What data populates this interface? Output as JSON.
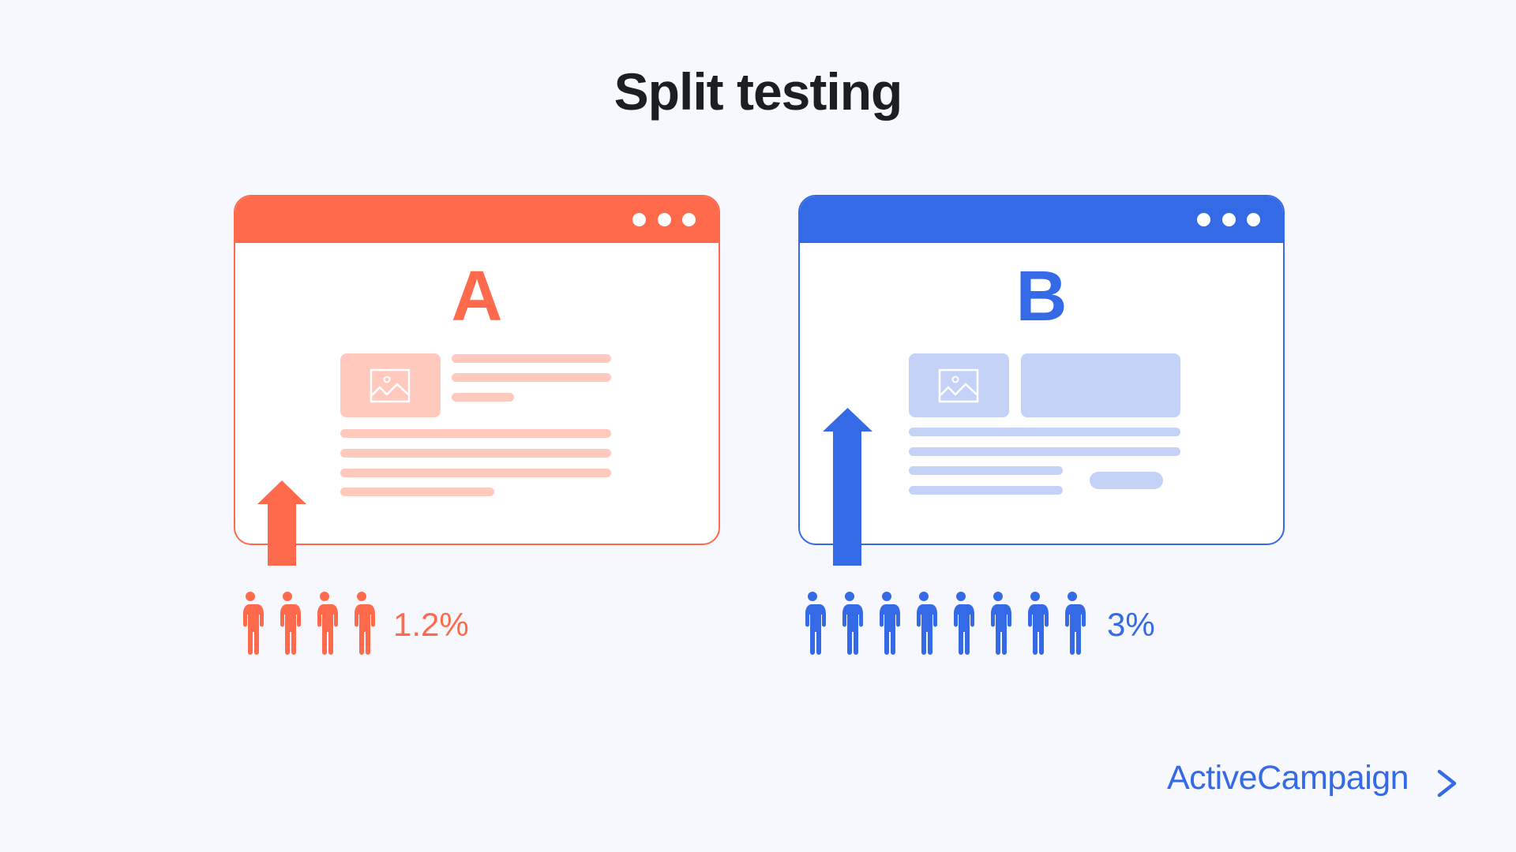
{
  "title": "Split testing",
  "colors": {
    "background": "#F7F8FD",
    "variant_a": "#FF6A4D",
    "variant_a_light": "#FFC9BD",
    "variant_b": "#356AE6",
    "variant_b_light": "#C4D2F7"
  },
  "variants": [
    {
      "label": "A",
      "rate": "1.2%",
      "people_count": 4,
      "icon": "person-icon"
    },
    {
      "label": "B",
      "rate": "3%",
      "people_count": 8,
      "icon": "person-icon"
    }
  ],
  "brand": {
    "name": "ActiveCampaign",
    "logo_icon": "chevron-right-icon"
  }
}
